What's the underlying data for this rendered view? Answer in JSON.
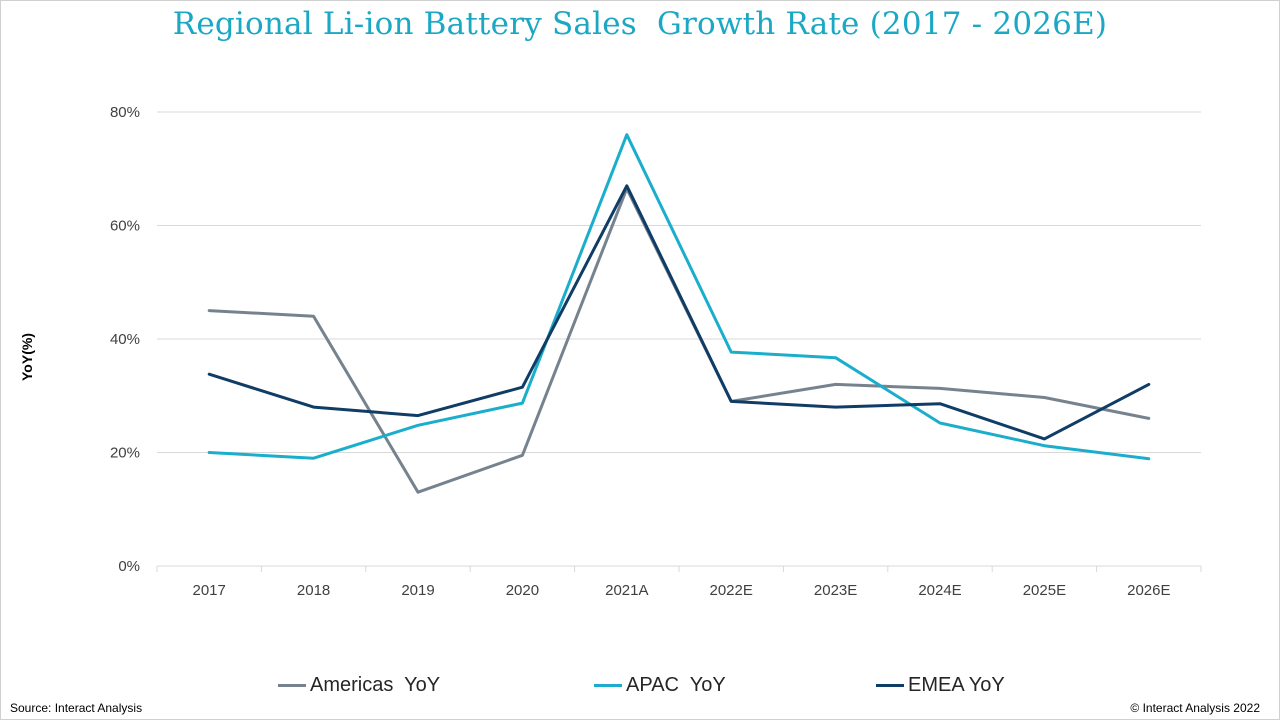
{
  "chart_data": {
    "type": "line",
    "title": "Regional Li-ion Battery Sales  Growth Rate (2017 - 2026E)",
    "xlabel": "",
    "ylabel": "YoY(%)",
    "ylim": [
      0,
      80
    ],
    "y_ticks": [
      "0%",
      "20%",
      "40%",
      "60%",
      "80%"
    ],
    "y_tick_values": [
      0,
      20,
      40,
      60,
      80
    ],
    "grid": true,
    "legend_position": "bottom",
    "categories": [
      "2017",
      "2018",
      "2019",
      "2020",
      "2021A",
      "2022E",
      "2023E",
      "2024E",
      "2025E",
      "2026E"
    ],
    "series": [
      {
        "name": "Americas  YoY",
        "color": "#76838f",
        "values": [
          45,
          44,
          13,
          19.5,
          66.5,
          29,
          32,
          31.3,
          29.7,
          26
        ]
      },
      {
        "name": "APAC  YoY",
        "color": "#1aaecc",
        "values": [
          20,
          19,
          24.8,
          28.7,
          76,
          37.7,
          36.7,
          25.2,
          21.2,
          18.9
        ]
      },
      {
        "name": "EMEA YoY",
        "color": "#0f3d66",
        "values": [
          33.8,
          28,
          26.5,
          31.5,
          67,
          29,
          28,
          28.6,
          22.4,
          32
        ]
      }
    ]
  },
  "footer": {
    "source": "Source: Interact Analysis",
    "copyright": "© Interact Analysis 2022"
  }
}
